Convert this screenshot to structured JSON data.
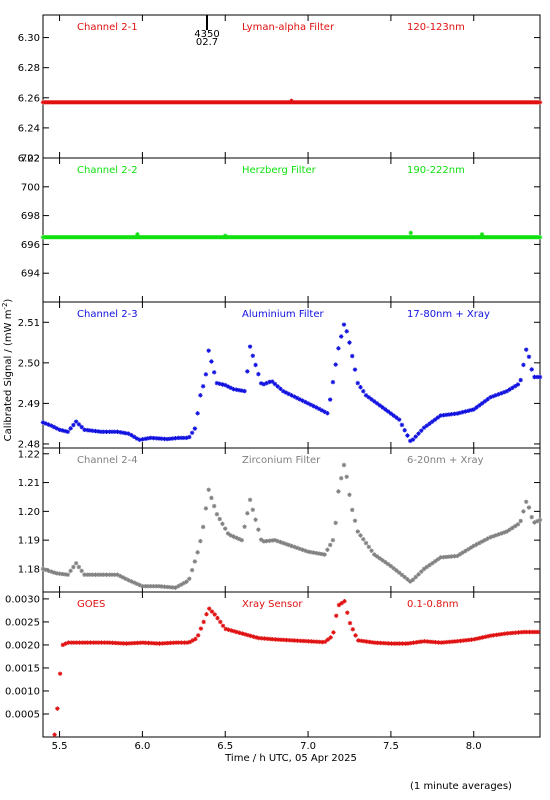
{
  "chart_data": {
    "type": "scatter",
    "xlabel": "Time / h UTC, 05 Apr 2025",
    "ylabel": "Calibrated Signal / (mW m",
    "ylabel_exponent": "-2",
    "ylabel_close": ")",
    "xlim": [
      5.4,
      8.4
    ],
    "x_ticks": [
      5.5,
      6.0,
      6.5,
      7.0,
      7.5,
      8.0
    ],
    "x_tick_labels": [
      "5.5",
      "6.0",
      "6.5",
      "7.0",
      "7.5",
      "8.0"
    ],
    "footnote": "(1 minute averages)",
    "orbit_marker": {
      "x": 6.39,
      "labels": [
        "4350",
        "02.7"
      ]
    },
    "panels": [
      {
        "channel": "Channel 2-1",
        "filter": "Lyman-alpha Filter",
        "band": "120-123nm",
        "color": "#e01010",
        "ylim": [
          6.22,
          6.315
        ],
        "y_ticks": [
          6.22,
          6.24,
          6.26,
          6.28,
          6.3
        ],
        "y_tick_labels": [
          "6.22",
          "6.24",
          "6.26",
          "6.28",
          "6.30"
        ],
        "kind": "flat",
        "level": 6.257,
        "points": [
          [
            5.4,
            6.257
          ],
          [
            6.9,
            6.258
          ],
          [
            8.4,
            6.257
          ]
        ]
      },
      {
        "channel": "Channel 2-2",
        "filter": "Herzberg Filter",
        "band": "190-222nm",
        "color": "#10e010",
        "ylim": [
          692,
          702
        ],
        "y_ticks": [
          694,
          696,
          698,
          700,
          702
        ],
        "y_tick_labels": [
          "694",
          "696",
          "698",
          "700",
          "702"
        ],
        "kind": "flat",
        "level": 696.5,
        "points": [
          [
            5.4,
            696.5
          ],
          [
            5.97,
            696.7
          ],
          [
            6.5,
            696.6
          ],
          [
            7.62,
            696.8
          ],
          [
            8.05,
            696.7
          ],
          [
            8.4,
            696.5
          ]
        ]
      },
      {
        "channel": "Channel 2-3",
        "filter": "Aluminium Filter",
        "band": "17-80nm + Xray",
        "color": "#1010e0",
        "ylim": [
          2.479,
          2.515
        ],
        "y_ticks": [
          2.48,
          2.49,
          2.5,
          2.51
        ],
        "y_tick_labels": [
          "2.48",
          "2.49",
          "2.50",
          "2.51"
        ],
        "kind": "scatter",
        "points": [
          [
            5.4,
            2.4853
          ],
          [
            5.45,
            2.4845
          ],
          [
            5.5,
            2.4835
          ],
          [
            5.55,
            2.483
          ],
          [
            5.6,
            2.4855
          ],
          [
            5.65,
            2.4835
          ],
          [
            5.75,
            2.483
          ],
          [
            5.85,
            2.483
          ],
          [
            5.92,
            2.4825
          ],
          [
            5.98,
            2.481
          ],
          [
            6.05,
            2.4815
          ],
          [
            6.15,
            2.4812
          ],
          [
            6.22,
            2.4815
          ],
          [
            6.28,
            2.4815
          ],
          [
            6.32,
            2.484
          ],
          [
            6.35,
            2.492
          ],
          [
            6.38,
            2.496
          ],
          [
            6.4,
            2.503
          ],
          [
            6.45,
            2.495
          ],
          [
            6.5,
            2.4945
          ],
          [
            6.55,
            2.4935
          ],
          [
            6.62,
            2.493
          ],
          [
            6.65,
            2.504
          ],
          [
            6.72,
            2.4945
          ],
          [
            6.78,
            2.4955
          ],
          [
            6.85,
            2.493
          ],
          [
            6.95,
            2.491
          ],
          [
            7.05,
            2.489
          ],
          [
            7.12,
            2.4875
          ],
          [
            7.18,
            2.503
          ],
          [
            7.22,
            2.51
          ],
          [
            7.25,
            2.505
          ],
          [
            7.3,
            2.495
          ],
          [
            7.35,
            2.492
          ],
          [
            7.45,
            2.489
          ],
          [
            7.55,
            2.486
          ],
          [
            7.62,
            2.4805
          ],
          [
            7.7,
            2.484
          ],
          [
            7.8,
            2.487
          ],
          [
            7.9,
            2.4875
          ],
          [
            8.0,
            2.4885
          ],
          [
            8.1,
            2.4915
          ],
          [
            8.2,
            2.493
          ],
          [
            8.28,
            2.495
          ],
          [
            8.32,
            2.504
          ],
          [
            8.36,
            2.4965
          ],
          [
            8.4,
            2.4965
          ]
        ]
      },
      {
        "channel": "Channel 2-4",
        "filter": "Zirconium Filter",
        "band": "6-20nm + Xray",
        "color": "#808080",
        "ylim": [
          1.172,
          1.222
        ],
        "y_ticks": [
          1.18,
          1.19,
          1.2,
          1.21,
          1.22
        ],
        "y_tick_labels": [
          "1.18",
          "1.19",
          "1.20",
          "1.21",
          "1.22"
        ],
        "kind": "scatter",
        "points": [
          [
            5.4,
            1.18
          ],
          [
            5.48,
            1.1785
          ],
          [
            5.55,
            1.178
          ],
          [
            5.6,
            1.182
          ],
          [
            5.65,
            1.178
          ],
          [
            5.75,
            1.178
          ],
          [
            5.85,
            1.178
          ],
          [
            5.92,
            1.176
          ],
          [
            6.0,
            1.174
          ],
          [
            6.1,
            1.174
          ],
          [
            6.2,
            1.1735
          ],
          [
            6.28,
            1.176
          ],
          [
            6.33,
            1.185
          ],
          [
            6.36,
            1.192
          ],
          [
            6.4,
            1.2075
          ],
          [
            6.45,
            1.199
          ],
          [
            6.52,
            1.192
          ],
          [
            6.6,
            1.19
          ],
          [
            6.65,
            1.204
          ],
          [
            6.72,
            1.1895
          ],
          [
            6.8,
            1.19
          ],
          [
            6.9,
            1.188
          ],
          [
            7.0,
            1.186
          ],
          [
            7.1,
            1.185
          ],
          [
            7.16,
            1.191
          ],
          [
            7.18,
            1.206
          ],
          [
            7.22,
            1.217
          ],
          [
            7.26,
            1.202
          ],
          [
            7.3,
            1.193
          ],
          [
            7.4,
            1.185
          ],
          [
            7.5,
            1.181
          ],
          [
            7.62,
            1.1755
          ],
          [
            7.7,
            1.18
          ],
          [
            7.8,
            1.184
          ],
          [
            7.9,
            1.1845
          ],
          [
            8.0,
            1.188
          ],
          [
            8.1,
            1.191
          ],
          [
            8.2,
            1.193
          ],
          [
            8.28,
            1.196
          ],
          [
            8.32,
            1.204
          ],
          [
            8.36,
            1.196
          ],
          [
            8.4,
            1.197
          ]
        ]
      },
      {
        "channel": "GOES",
        "filter": "Xray Sensor",
        "band": "0.1-0.8nm",
        "color": "#e01010",
        "ylim": [
          0.0,
          0.00315
        ],
        "y_ticks": [
          0.0005,
          0.001,
          0.0015,
          0.002,
          0.0025,
          0.003
        ],
        "y_tick_labels": [
          "0.0005",
          "0.0010",
          "0.0015",
          "0.0020",
          "0.0025",
          "0.0030"
        ],
        "kind": "scatter",
        "points": [
          [
            5.47,
            5e-05
          ],
          [
            5.48,
            0.0003
          ],
          [
            5.5,
            0.00125
          ],
          [
            5.52,
            0.002
          ],
          [
            5.55,
            0.00205
          ],
          [
            5.6,
            0.00205
          ],
          [
            5.7,
            0.00205
          ],
          [
            5.8,
            0.00205
          ],
          [
            5.9,
            0.00203
          ],
          [
            6.0,
            0.00205
          ],
          [
            6.1,
            0.00203
          ],
          [
            6.2,
            0.00205
          ],
          [
            6.28,
            0.00205
          ],
          [
            6.33,
            0.00215
          ],
          [
            6.37,
            0.0025
          ],
          [
            6.4,
            0.0028
          ],
          [
            6.44,
            0.00265
          ],
          [
            6.5,
            0.00235
          ],
          [
            6.6,
            0.00225
          ],
          [
            6.7,
            0.00215
          ],
          [
            6.8,
            0.00212
          ],
          [
            6.9,
            0.0021
          ],
          [
            7.0,
            0.00208
          ],
          [
            7.1,
            0.00206
          ],
          [
            7.15,
            0.0022
          ],
          [
            7.18,
            0.00285
          ],
          [
            7.22,
            0.00295
          ],
          [
            7.25,
            0.0025
          ],
          [
            7.3,
            0.0021
          ],
          [
            7.4,
            0.00205
          ],
          [
            7.5,
            0.00203
          ],
          [
            7.6,
            0.00203
          ],
          [
            7.7,
            0.00208
          ],
          [
            7.8,
            0.00205
          ],
          [
            7.9,
            0.00208
          ],
          [
            8.0,
            0.00212
          ],
          [
            8.1,
            0.0022
          ],
          [
            8.2,
            0.00225
          ],
          [
            8.3,
            0.00228
          ],
          [
            8.4,
            0.00228
          ]
        ]
      }
    ]
  }
}
